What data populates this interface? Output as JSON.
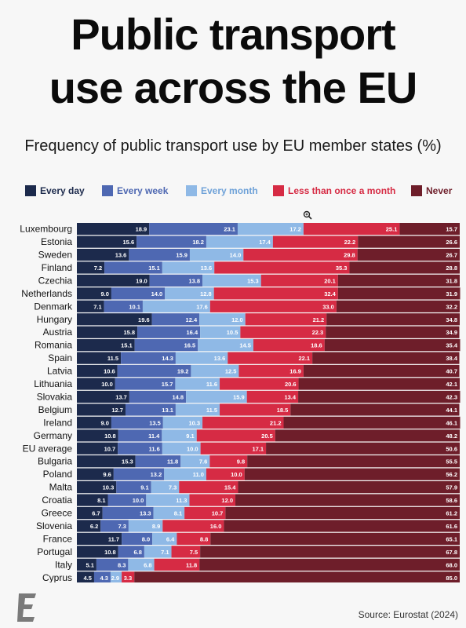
{
  "title_line1": "Public transport",
  "title_line2": "use across the EU",
  "subtitle": "Frequency of public transport use by EU member states (%)",
  "source": "Source: Eurostat (2024)",
  "colors": {
    "every_day": "#1c2a4c",
    "every_week": "#4e68b2",
    "every_month": "#8fb9e6",
    "less_than_monthly": "#d62b44",
    "never": "#6e1e2a"
  },
  "chart_data": {
    "type": "bar",
    "orientation": "horizontal",
    "stacked": true,
    "categories": [
      "Luxembourg",
      "Estonia",
      "Sweden",
      "Finland",
      "Czechia",
      "Netherlands",
      "Denmark",
      "Hungary",
      "Austria",
      "Romania",
      "Spain",
      "Latvia",
      "Lithuania",
      "Slovakia",
      "Belgium",
      "Ireland",
      "Germany",
      "EU average",
      "Bulgaria",
      "Poland",
      "Malta",
      "Croatia",
      "Greece",
      "Slovenia",
      "France",
      "Portugal",
      "Italy",
      "Cyprus"
    ],
    "series": [
      {
        "name": "Every day",
        "color": "#1c2a4c",
        "values": [
          18.9,
          15.6,
          13.6,
          7.2,
          19.0,
          9.0,
          7.1,
          19.6,
          15.8,
          15.1,
          11.5,
          10.6,
          10.0,
          13.7,
          12.7,
          9.0,
          10.8,
          10.7,
          15.3,
          9.6,
          10.3,
          8.1,
          6.7,
          6.2,
          11.7,
          10.8,
          5.1,
          4.5
        ]
      },
      {
        "name": "Every week",
        "color": "#4e68b2",
        "values": [
          23.1,
          18.2,
          15.9,
          15.1,
          13.8,
          14.0,
          10.1,
          12.4,
          16.4,
          16.5,
          14.3,
          19.2,
          15.7,
          14.8,
          13.1,
          13.5,
          11.4,
          11.6,
          11.8,
          13.2,
          9.1,
          10.0,
          13.3,
          7.3,
          8.0,
          6.8,
          8.3,
          4.3
        ]
      },
      {
        "name": "Every month",
        "color": "#8fb9e6",
        "values": [
          17.2,
          17.4,
          14.0,
          13.6,
          15.3,
          12.8,
          17.6,
          12.0,
          10.5,
          14.5,
          13.6,
          12.5,
          11.6,
          15.9,
          11.5,
          10.3,
          9.1,
          10.0,
          7.6,
          11.0,
          7.3,
          11.3,
          8.1,
          8.9,
          6.4,
          7.1,
          6.8,
          2.9
        ]
      },
      {
        "name": "Less than once a month",
        "color": "#d62b44",
        "values": [
          25.1,
          22.2,
          29.8,
          35.3,
          20.1,
          32.4,
          33.0,
          21.2,
          22.3,
          18.6,
          22.1,
          16.9,
          20.6,
          13.4,
          18.5,
          21.2,
          20.5,
          17.1,
          9.8,
          10.0,
          15.4,
          12.0,
          10.7,
          16.0,
          8.8,
          7.5,
          11.8,
          3.3
        ]
      },
      {
        "name": "Never",
        "color": "#6e1e2a",
        "values": [
          15.7,
          26.6,
          26.7,
          28.8,
          31.8,
          31.9,
          32.2,
          34.8,
          34.9,
          35.4,
          38.4,
          40.7,
          42.1,
          42.3,
          44.1,
          46.1,
          48.2,
          50.6,
          55.5,
          56.2,
          57.9,
          58.6,
          61.2,
          61.6,
          65.1,
          67.8,
          68.0,
          85.0
        ]
      }
    ],
    "xlim": [
      0,
      100
    ],
    "legend": "top"
  }
}
